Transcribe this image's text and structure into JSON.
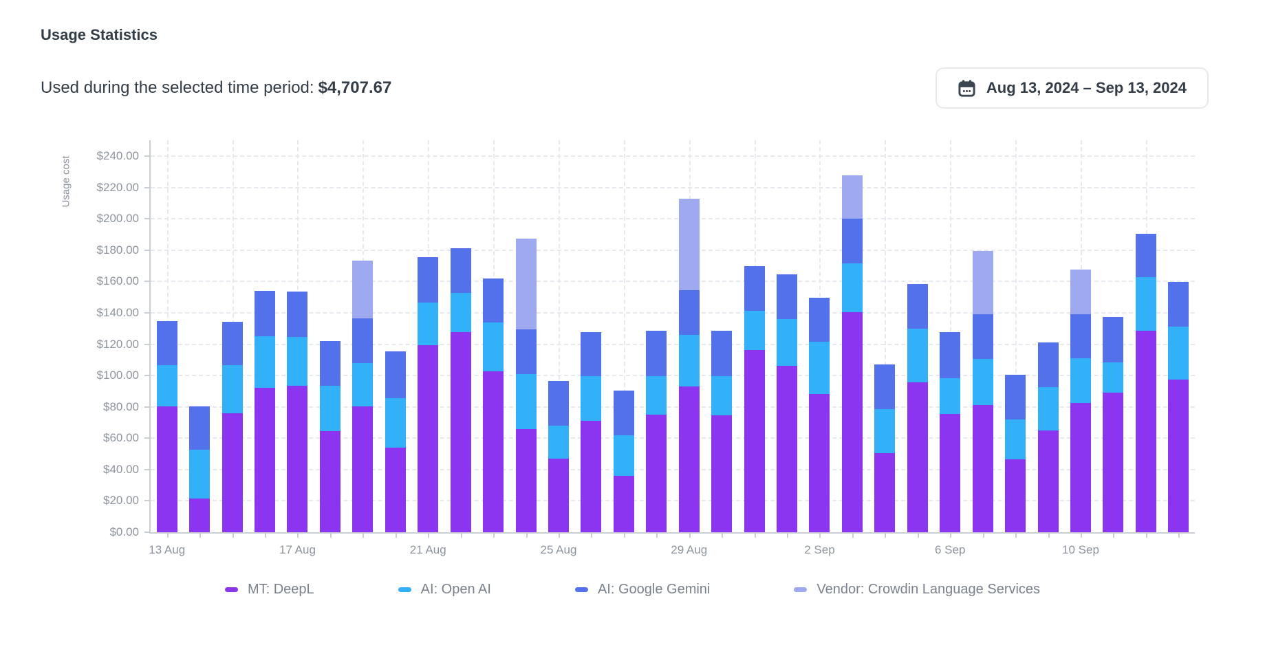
{
  "header": {
    "title": "Usage Statistics",
    "subtitle_label": "Used during the selected time period:",
    "subtitle_value": "$4,707.67",
    "date_range": "Aug 13, 2024 – Sep 13, 2024"
  },
  "chart_data": {
    "type": "bar",
    "stacked": true,
    "ylabel": "Usage cost",
    "xlabel": "",
    "ylim": [
      0,
      250
    ],
    "ytick_step": 20,
    "ytick_labels": [
      "$0.00",
      "$20.00",
      "$40.00",
      "$60.00",
      "$80.00",
      "$100.00",
      "$120.00",
      "$140.00",
      "$160.00",
      "$180.00",
      "$200.00",
      "$220.00",
      "$240.00"
    ],
    "grid": "dashed",
    "legend_position": "bottom",
    "categories": [
      "13 Aug",
      "14 Aug",
      "15 Aug",
      "16 Aug",
      "17 Aug",
      "18 Aug",
      "19 Aug",
      "20 Aug",
      "21 Aug",
      "22 Aug",
      "23 Aug",
      "24 Aug",
      "25 Aug",
      "26 Aug",
      "27 Aug",
      "28 Aug",
      "29 Aug",
      "30 Aug",
      "31 Aug",
      "1 Sep",
      "2 Sep",
      "3 Sep",
      "4 Sep",
      "5 Sep",
      "6 Sep",
      "7 Sep",
      "8 Sep",
      "9 Sep",
      "10 Sep",
      "11 Sep",
      "12 Sep",
      "13 Sep"
    ],
    "xtick_labels_shown": [
      "13 Aug",
      "17 Aug",
      "21 Aug",
      "25 Aug",
      "29 Aug",
      "2 Sep",
      "6 Sep",
      "10 Sep"
    ],
    "series": [
      {
        "name": "MT: DeepL",
        "color": "#8B35F1",
        "values": [
          80.5,
          21.5,
          76,
          92,
          93.5,
          64.5,
          80.5,
          54,
          119.5,
          127.5,
          102.5,
          66,
          47,
          71,
          36,
          75,
          93,
          74.5,
          116.5,
          106,
          88,
          140.5,
          50.5,
          95.5,
          75.5,
          81,
          46.5,
          65,
          82.5,
          89,
          128.5,
          97.5
        ]
      },
      {
        "name": "AI: Open AI",
        "color": "#33B1F8",
        "values": [
          26,
          31,
          30.5,
          33,
          31,
          29,
          27.5,
          31.5,
          27,
          25,
          31.5,
          35,
          21,
          28.5,
          26,
          24.5,
          33,
          25,
          25,
          30,
          33.5,
          31,
          28,
          34.5,
          23,
          29.5,
          25.5,
          27.5,
          28.5,
          19.5,
          34.5,
          33.5
        ]
      },
      {
        "name": "AI: Google Gemini",
        "color": "#5271EA",
        "values": [
          28,
          28,
          28,
          29,
          29,
          28.5,
          28.5,
          30,
          29,
          28.5,
          28,
          28.5,
          28.5,
          28,
          28.5,
          29,
          28.5,
          29,
          28.5,
          28.5,
          28,
          28.5,
          28.5,
          28.5,
          29,
          28.5,
          28.5,
          28.5,
          28,
          29,
          27.5,
          28.5
        ]
      },
      {
        "name": "Vendor: Crowdin Language Services",
        "color": "#9FA9EF",
        "values": [
          0,
          0,
          0,
          0,
          0,
          0,
          37,
          0,
          0,
          0,
          0,
          58,
          0,
          0,
          0,
          0,
          58.5,
          0,
          0,
          0,
          0,
          27.5,
          0,
          0,
          0,
          40.5,
          0,
          0,
          28.5,
          0,
          0,
          0
        ]
      }
    ]
  }
}
